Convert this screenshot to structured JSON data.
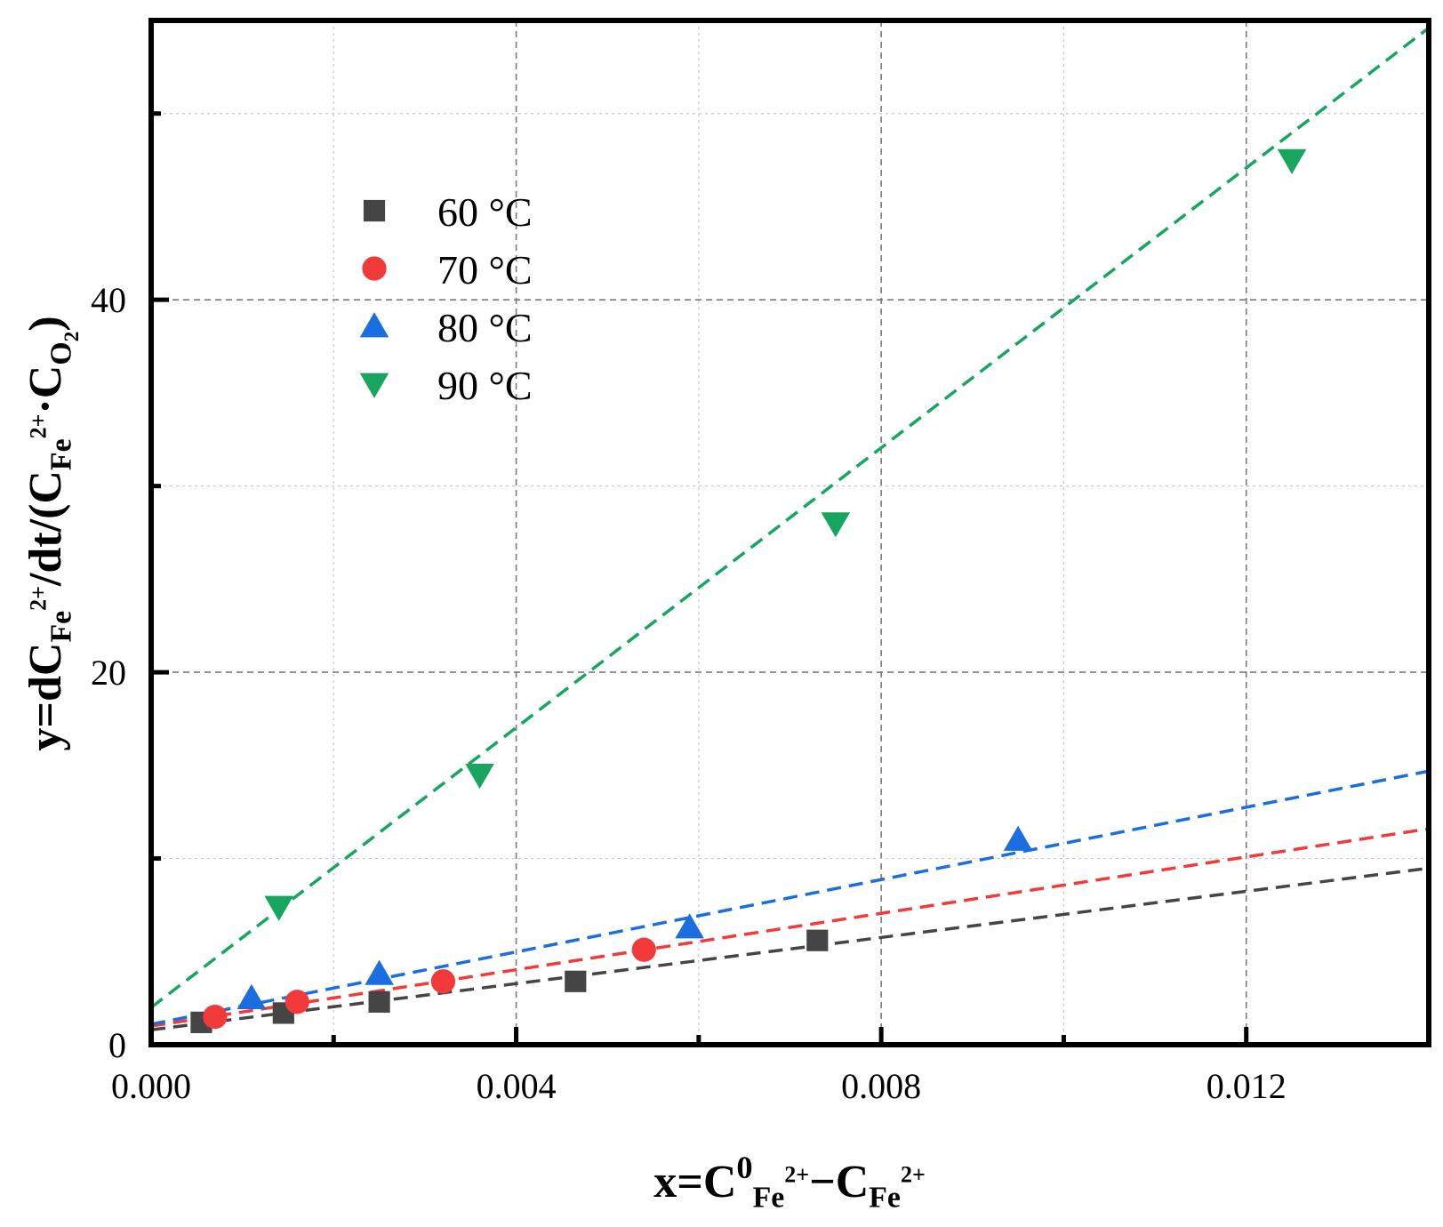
{
  "chart_data": {
    "type": "scatter",
    "title": "",
    "xlabel": {
      "parts": [
        {
          "t": "x=C",
          "s": "base"
        },
        {
          "t": "0",
          "s": "sup"
        },
        {
          "t": "Fe",
          "s": "sub"
        },
        {
          "t": "2+",
          "s": "supsmall"
        },
        {
          "t": "−C",
          "s": "base"
        },
        {
          "t": "Fe",
          "s": "sub"
        },
        {
          "t": "2+",
          "s": "supsmall"
        }
      ]
    },
    "ylabel": {
      "parts": [
        {
          "t": "y=dC",
          "s": "base"
        },
        {
          "t": "Fe",
          "s": "sub"
        },
        {
          "t": "2+",
          "s": "supsmall"
        },
        {
          "t": "/dt/(C",
          "s": "base"
        },
        {
          "t": "Fe",
          "s": "sub"
        },
        {
          "t": "2+",
          "s": "supsmall"
        },
        {
          "t": "·C",
          "s": "base"
        },
        {
          "t": "O",
          "s": "sub"
        },
        {
          "t": "2",
          "s": "subsub"
        },
        {
          "t": ")",
          "s": "base"
        }
      ]
    },
    "xlim": [
      0,
      0.014
    ],
    "ylim": [
      0,
      55
    ],
    "xticks": [
      0.0,
      0.004,
      0.008,
      0.012
    ],
    "xtick_labels": [
      "0.000",
      "0.004",
      "0.008",
      "0.012"
    ],
    "xminor": [
      0.002,
      0.006,
      0.01
    ],
    "yticks": [
      0,
      20,
      40
    ],
    "ytick_labels": [
      "0",
      "20",
      "40"
    ],
    "yminor": [
      10,
      30,
      50
    ],
    "grid": true,
    "legend_position": "upper-left",
    "series": [
      {
        "name": "60 °C",
        "color": "#454545",
        "marker": "square",
        "x": [
          0.00055,
          0.00145,
          0.0025,
          0.00465,
          0.0073
        ],
        "y": [
          1.2,
          1.7,
          2.3,
          3.4,
          5.6
        ],
        "fit": {
          "intercept": 0.8,
          "slope": 620
        }
      },
      {
        "name": "70 °C",
        "color": "#f23a3a",
        "marker": "circle",
        "x": [
          0.0007,
          0.0016,
          0.0032,
          0.0054
        ],
        "y": [
          1.5,
          2.3,
          3.4,
          5.1
        ],
        "fit": {
          "intercept": 1.0,
          "slope": 757
        }
      },
      {
        "name": "80 °C",
        "color": "#1a6ee0",
        "marker": "triangle-up",
        "x": [
          0.0011,
          0.0025,
          0.0059,
          0.0095
        ],
        "y": [
          2.5,
          3.8,
          6.3,
          11.0
        ],
        "fit": {
          "intercept": 1.1,
          "slope": 971
        }
      },
      {
        "name": "90 °C",
        "color": "#17a560",
        "marker": "triangle-down",
        "x": [
          0.0014,
          0.0036,
          0.0075,
          0.0125
        ],
        "y": [
          7.4,
          14.5,
          28.0,
          47.5
        ],
        "fit": {
          "intercept": 2.0,
          "slope": 3757
        }
      }
    ]
  }
}
